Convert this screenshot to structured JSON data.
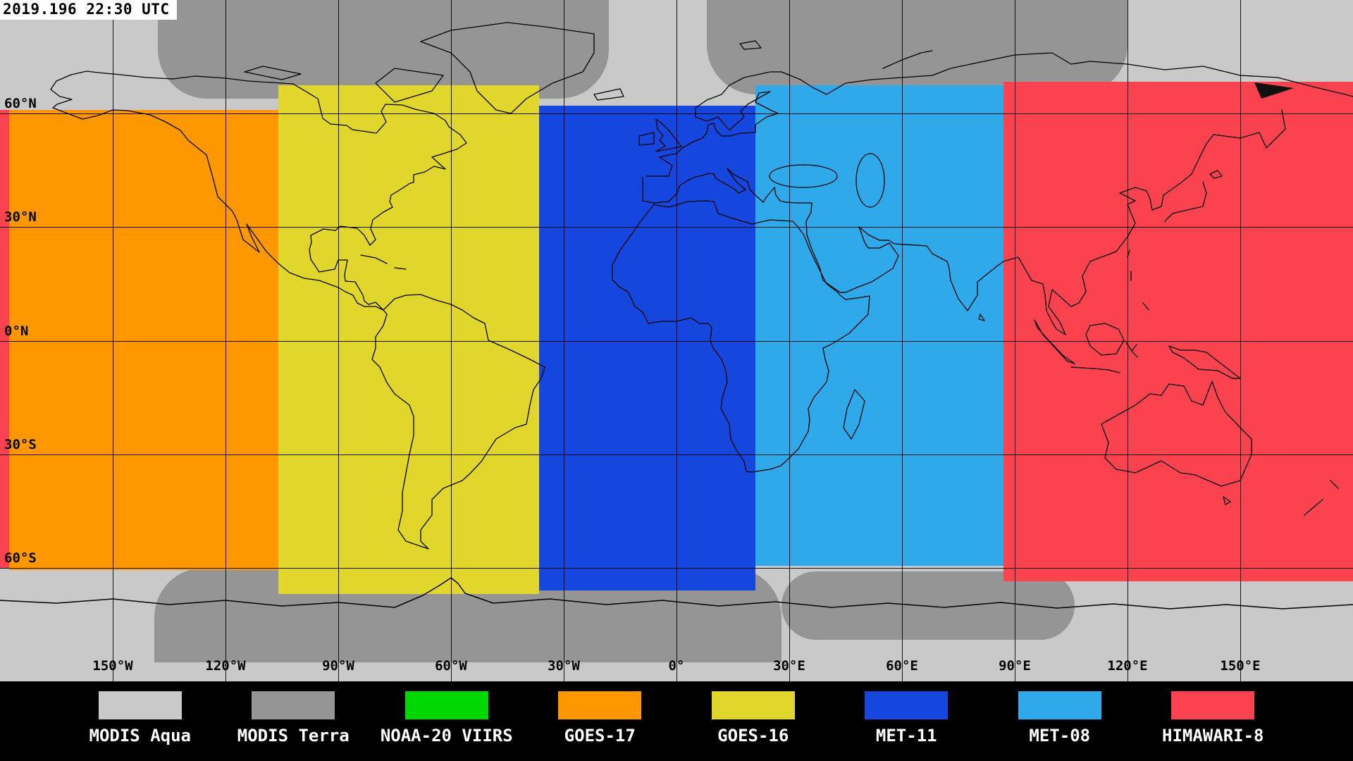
{
  "timestamp": "2019.196 22:30 UTC",
  "map": {
    "background_color": "#c9c9c9",
    "terra_color": "#959595",
    "lat_labels": [
      {
        "label": "60°N",
        "lat": 60
      },
      {
        "label": "30°N",
        "lat": 30
      },
      {
        "label": "0°N",
        "lat": 0
      },
      {
        "label": "30°S",
        "lat": -30
      },
      {
        "label": "60°S",
        "lat": -60
      }
    ],
    "lon_labels": [
      {
        "label": "150°W",
        "lon": -150
      },
      {
        "label": "120°W",
        "lon": -120
      },
      {
        "label": "90°W",
        "lon": -90
      },
      {
        "label": "60°W",
        "lon": -60
      },
      {
        "label": "30°W",
        "lon": -30
      },
      {
        "label": "0°",
        "lon": 0
      },
      {
        "label": "30°E",
        "lon": 30
      },
      {
        "label": "60°E",
        "lon": 60
      },
      {
        "label": "90°E",
        "lon": 90
      },
      {
        "label": "120°E",
        "lon": 120
      },
      {
        "label": "150°E",
        "lon": 150
      }
    ],
    "coverage_bands": [
      {
        "name": "HIMAWARI-8",
        "color": "#fb4350",
        "lon_west": -180,
        "lon_east": -177.5,
        "lat_north": 61,
        "lat_south": -60
      },
      {
        "name": "GOES-17",
        "color": "#ff9800",
        "lon_west": -177.5,
        "lon_east": -106,
        "lat_north": 61,
        "lat_south": -60.5
      },
      {
        "name": "GOES-16",
        "color": "#e0d62c",
        "lon_west": -106,
        "lon_east": -36.5,
        "lat_north": 67.5,
        "lat_south": -67
      },
      {
        "name": "MET-11",
        "color": "#1546dd",
        "lon_west": -36.5,
        "lon_east": 21,
        "lat_north": 62,
        "lat_south": -66
      },
      {
        "name": "MET-08",
        "color": "#2fa9e9",
        "lon_west": 21,
        "lon_east": 87,
        "lat_north": 67.5,
        "lat_south": -59.5
      },
      {
        "name": "HIMAWARI-8",
        "color": "#fb4350",
        "lon_west": 87,
        "lon_east": 180,
        "lat_north": 68.5,
        "lat_south": -63.5
      }
    ],
    "terra_regions": [
      {
        "lon_west": -138,
        "lon_east": -18,
        "lat_north": 90,
        "lat_south": 64
      },
      {
        "lon_west": 8,
        "lon_east": 120,
        "lat_north": 90,
        "lat_south": 65
      },
      {
        "lon_west": -139,
        "lon_east": 28,
        "lat_north": -60,
        "lat_south": -85
      },
      {
        "lon_west": 28,
        "lon_east": 106,
        "lat_north": -61,
        "lat_south": -79
      }
    ]
  },
  "legend": {
    "items": [
      {
        "label": "MODIS Aqua",
        "color": "#c9c9c9"
      },
      {
        "label": "MODIS Terra",
        "color": "#959595"
      },
      {
        "label": "NOAA-20 VIIRS",
        "color": "#00d600"
      },
      {
        "label": "GOES-17",
        "color": "#ff9800"
      },
      {
        "label": "GOES-16",
        "color": "#e0d62c"
      },
      {
        "label": "MET-11",
        "color": "#1546dd"
      },
      {
        "label": "MET-08",
        "color": "#2fa9e9"
      },
      {
        "label": "HIMAWARI-8",
        "color": "#fb4350"
      }
    ]
  }
}
